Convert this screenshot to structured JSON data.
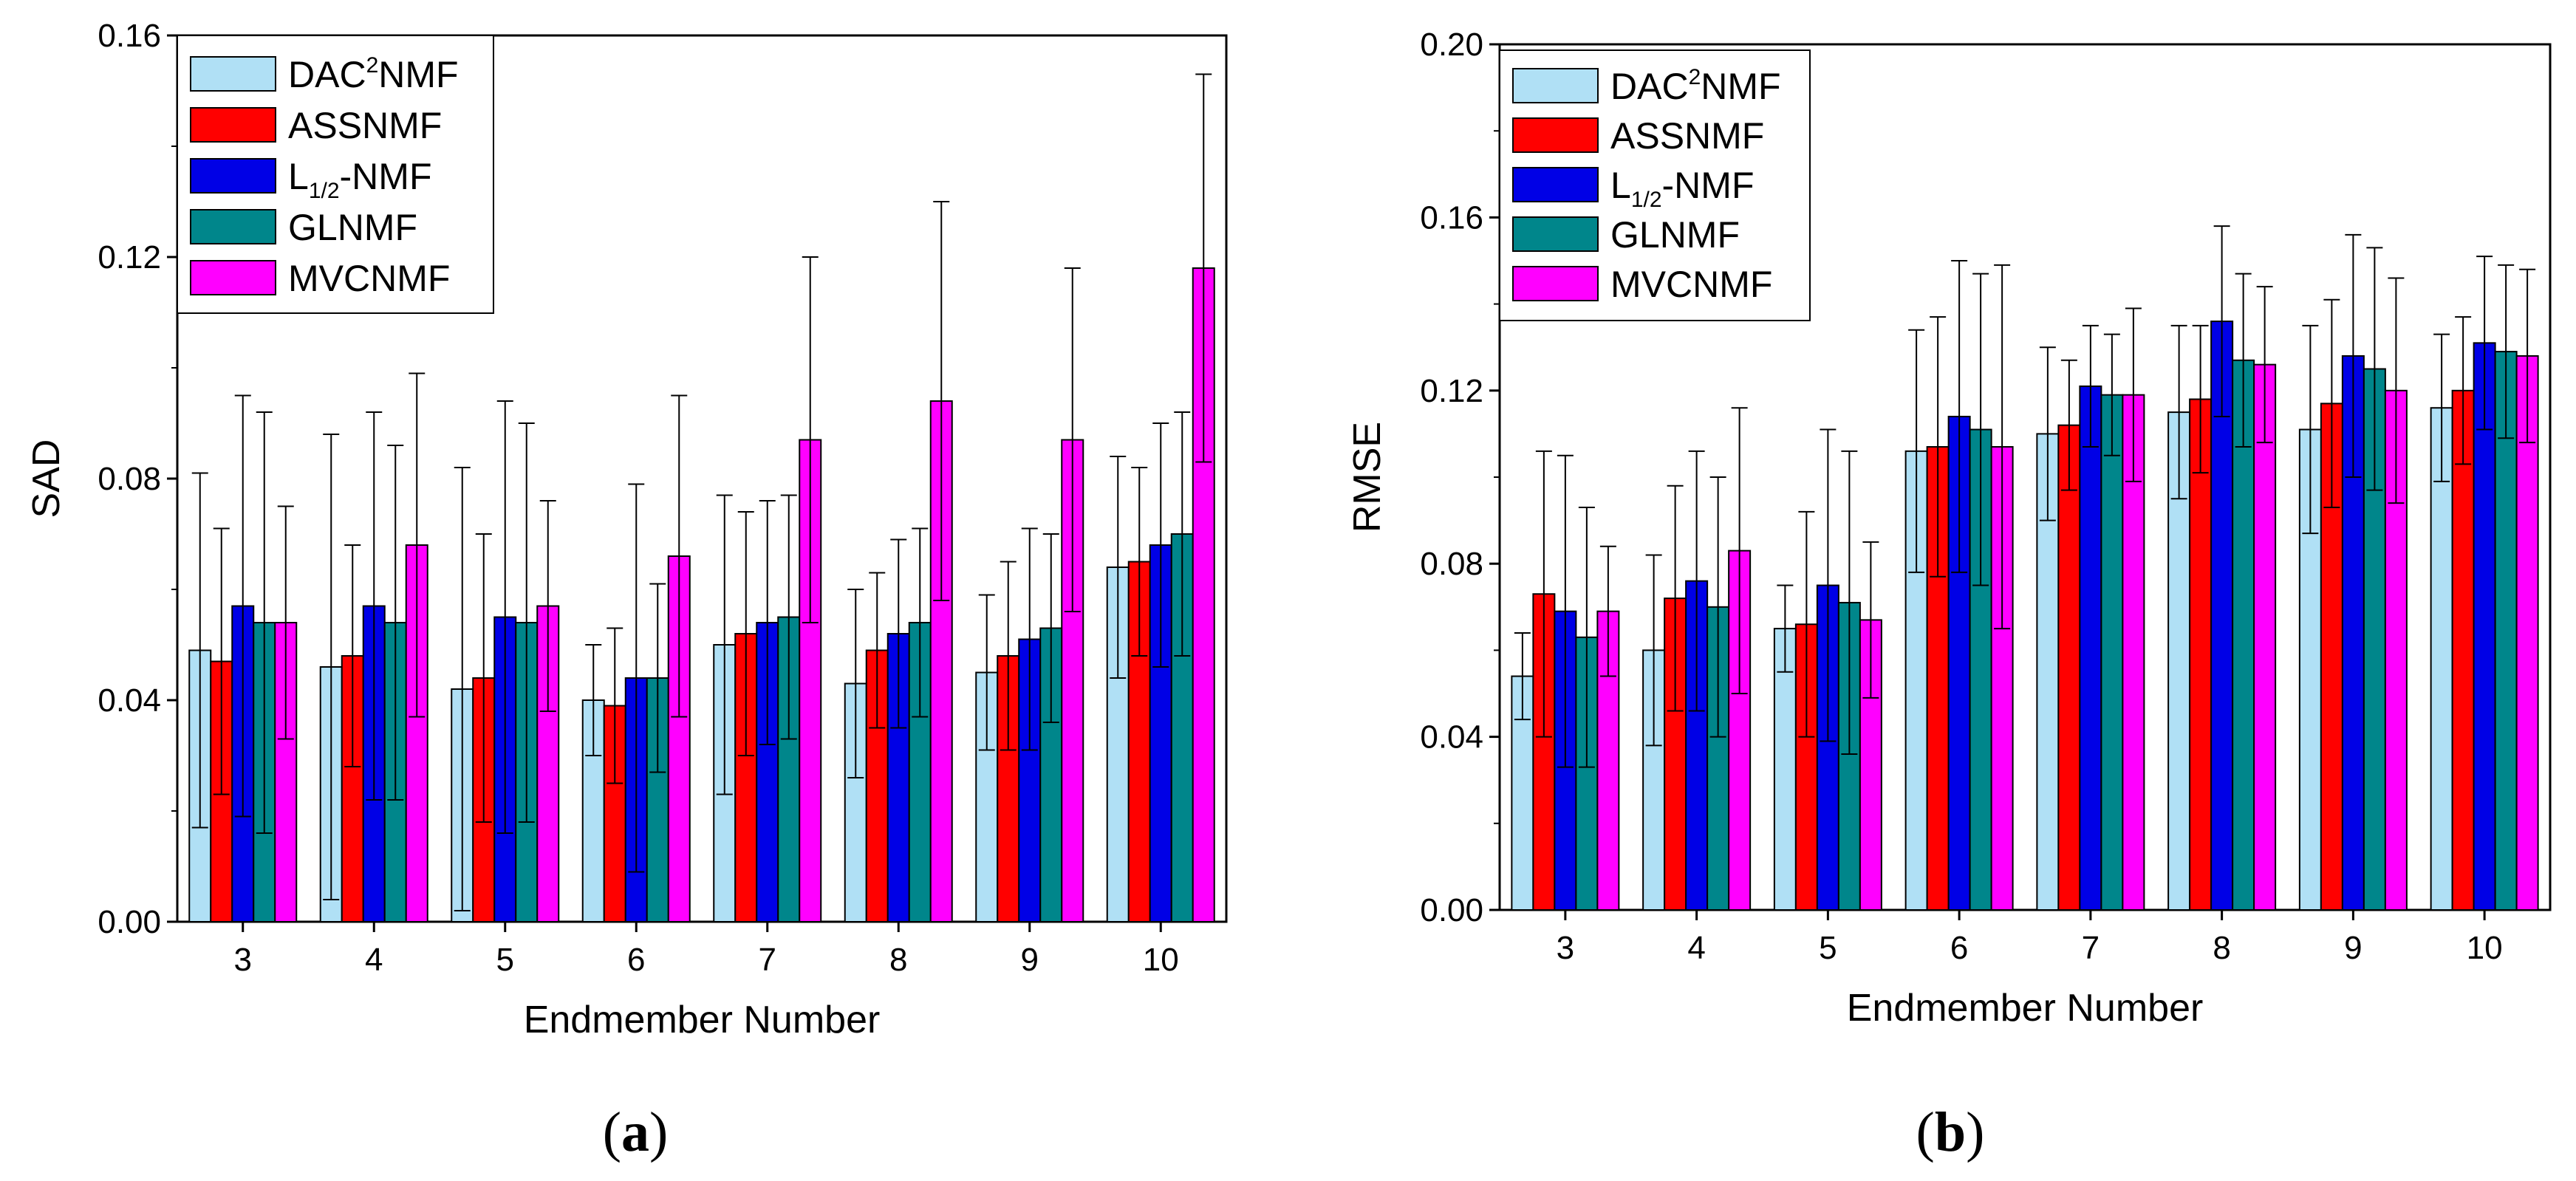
{
  "chart_data": [
    {
      "type": "bar",
      "panel_label": "(a)",
      "panel_letter": "a",
      "xlabel": "Endmember Number",
      "ylabel": "SAD",
      "ylim": [
        0,
        0.16
      ],
      "yticks": [
        "0.00",
        "0.04",
        "0.08",
        "0.12",
        "0.16"
      ],
      "categories": [
        "3",
        "4",
        "5",
        "6",
        "7",
        "8",
        "9",
        "10"
      ],
      "legend_position": "top-left",
      "series": [
        {
          "name": "DAC2NMF",
          "legend_base": "DAC",
          "legend_sup": "2",
          "legend_tail": "NMF",
          "color": "#b0e0f5",
          "values": [
            0.049,
            0.046,
            0.042,
            0.04,
            0.05,
            0.043,
            0.045,
            0.064
          ],
          "errors": [
            0.032,
            0.042,
            0.04,
            0.01,
            0.027,
            0.017,
            0.014,
            0.02
          ]
        },
        {
          "name": "ASSNMF",
          "legend_base": "ASSNMF",
          "color": "#ff0000",
          "values": [
            0.047,
            0.048,
            0.044,
            0.039,
            0.052,
            0.049,
            0.048,
            0.065
          ],
          "errors": [
            0.024,
            0.02,
            0.026,
            0.014,
            0.022,
            0.014,
            0.017,
            0.017
          ]
        },
        {
          "name": "L1/2-NMF",
          "legend_base": "L",
          "legend_sub": "1/2",
          "legend_tail": "-NMF",
          "color": "#0000e6",
          "values": [
            0.057,
            0.057,
            0.055,
            0.044,
            0.054,
            0.052,
            0.051,
            0.068
          ],
          "errors": [
            0.038,
            0.035,
            0.039,
            0.035,
            0.022,
            0.017,
            0.02,
            0.022
          ]
        },
        {
          "name": "GLNMF",
          "legend_base": "GLNMF",
          "color": "#00868b",
          "values": [
            0.054,
            0.054,
            0.054,
            0.044,
            0.055,
            0.054,
            0.053,
            0.07
          ],
          "errors": [
            0.038,
            0.032,
            0.036,
            0.017,
            0.022,
            0.017,
            0.017,
            0.022
          ]
        },
        {
          "name": "MVCNMF",
          "legend_base": "MVCNMF",
          "color": "#ff00ff",
          "values": [
            0.054,
            0.068,
            0.057,
            0.066,
            0.087,
            0.094,
            0.087,
            0.118
          ],
          "errors": [
            0.021,
            0.031,
            0.019,
            0.029,
            0.033,
            0.036,
            0.031,
            0.035
          ]
        }
      ]
    },
    {
      "type": "bar",
      "panel_label": "(b)",
      "panel_letter": "b",
      "xlabel": "Endmember Number",
      "ylabel": "RMSE",
      "ylim": [
        0,
        0.2
      ],
      "yticks": [
        "0.00",
        "0.04",
        "0.08",
        "0.12",
        "0.16",
        "0.20"
      ],
      "categories": [
        "3",
        "4",
        "5",
        "6",
        "7",
        "8",
        "9",
        "10"
      ],
      "legend_position": "top-left",
      "series": [
        {
          "name": "DAC2NMF",
          "legend_base": "DAC",
          "legend_sup": "2",
          "legend_tail": "NMF",
          "color": "#b0e0f5",
          "values": [
            0.054,
            0.06,
            0.065,
            0.106,
            0.11,
            0.115,
            0.111,
            0.116
          ],
          "errors": [
            0.01,
            0.022,
            0.01,
            0.028,
            0.02,
            0.02,
            0.024,
            0.017
          ]
        },
        {
          "name": "ASSNMF",
          "legend_base": "ASSNMF",
          "color": "#ff0000",
          "values": [
            0.073,
            0.072,
            0.066,
            0.107,
            0.112,
            0.118,
            0.117,
            0.12
          ],
          "errors": [
            0.033,
            0.026,
            0.026,
            0.03,
            0.015,
            0.017,
            0.024,
            0.017
          ]
        },
        {
          "name": "L1/2-NMF",
          "legend_base": "L",
          "legend_sub": "1/2",
          "legend_tail": "-NMF",
          "color": "#0000e6",
          "values": [
            0.069,
            0.076,
            0.075,
            0.114,
            0.121,
            0.136,
            0.128,
            0.131
          ],
          "errors": [
            0.036,
            0.03,
            0.036,
            0.036,
            0.014,
            0.022,
            0.028,
            0.02
          ]
        },
        {
          "name": "GLNMF",
          "legend_base": "GLNMF",
          "color": "#00868b",
          "values": [
            0.063,
            0.07,
            0.071,
            0.111,
            0.119,
            0.127,
            0.125,
            0.129
          ],
          "errors": [
            0.03,
            0.03,
            0.035,
            0.036,
            0.014,
            0.02,
            0.028,
            0.02
          ]
        },
        {
          "name": "MVCNMF",
          "legend_base": "MVCNMF",
          "color": "#ff00ff",
          "values": [
            0.069,
            0.083,
            0.067,
            0.107,
            0.119,
            0.126,
            0.12,
            0.128
          ],
          "errors": [
            0.015,
            0.033,
            0.018,
            0.042,
            0.02,
            0.018,
            0.026,
            0.02
          ]
        }
      ]
    }
  ]
}
